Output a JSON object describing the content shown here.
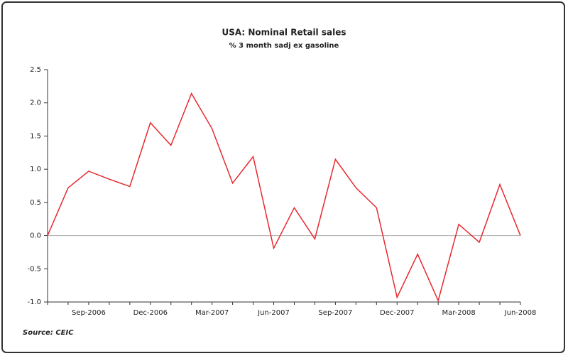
{
  "chart_data": {
    "type": "line",
    "title": "USA: Nominal Retail sales",
    "subtitle": "% 3 month sadj ex gasoline",
    "source": "Source: CEIC",
    "categories": [
      null,
      null,
      "Sep-2006",
      null,
      null,
      "Dec-2006",
      null,
      null,
      "Mar-2007",
      null,
      null,
      "Jun-2007",
      null,
      null,
      "Sep-2007",
      null,
      null,
      "Dec-2007",
      null,
      null,
      "Mar-2008",
      null,
      null,
      "Jun-2008"
    ],
    "series": [
      {
        "name": "Retail sales",
        "color": "#e8282e",
        "values": [
          0.0,
          0.72,
          0.97,
          0.85,
          0.74,
          1.7,
          1.36,
          2.14,
          1.61,
          0.79,
          1.19,
          -0.19,
          0.42,
          -0.05,
          1.15,
          0.72,
          0.42,
          -0.93,
          -0.28,
          -0.98,
          0.17,
          -0.1,
          0.77,
          0.0
        ]
      }
    ],
    "ylim": [
      -1.0,
      2.5
    ],
    "yticks": [
      {
        "value": -1,
        "label": "-1.0"
      },
      -0.5,
      {
        "value": 0,
        "label": "0.0"
      },
      0.5,
      {
        "value": 1,
        "label": "1.0"
      },
      1.5,
      {
        "value": 2,
        "label": "2.0"
      },
      2.5
    ],
    "zero_line": true
  }
}
